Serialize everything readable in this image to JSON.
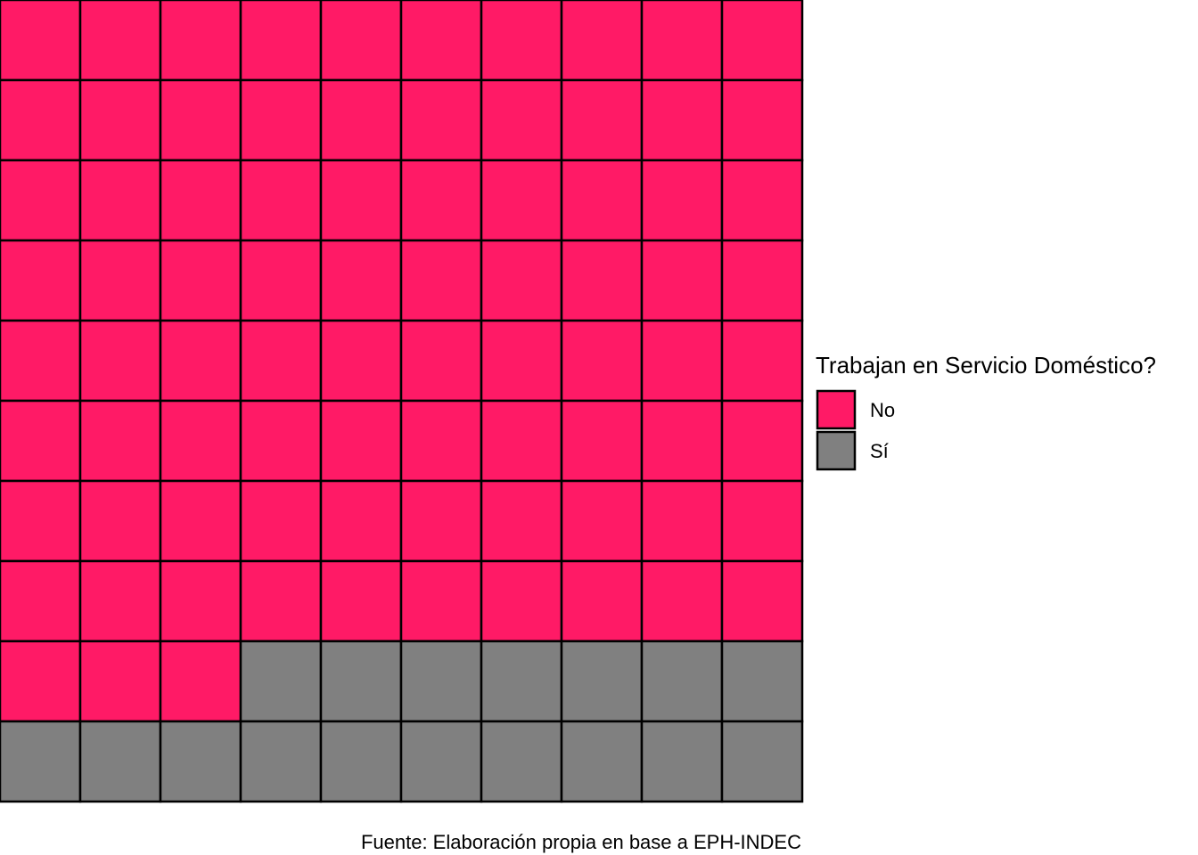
{
  "chart_data": {
    "type": "waffle",
    "rows": 10,
    "columns": 10,
    "fill_order": "row-major-from-top-left",
    "categories": [
      "No",
      "Sí"
    ],
    "values": [
      83,
      17
    ],
    "colors": [
      "#FF1A66",
      "#808080"
    ],
    "cell_outline_color": "#000000",
    "legend": {
      "title": "Trabajan en Servicio Doméstico?",
      "position": "right",
      "items": [
        {
          "label": "No",
          "color": "#FF1A66"
        },
        {
          "label": "Sí",
          "color": "#808080"
        }
      ]
    },
    "caption": "Fuente: Elaboración propia en base a EPH-INDEC"
  }
}
